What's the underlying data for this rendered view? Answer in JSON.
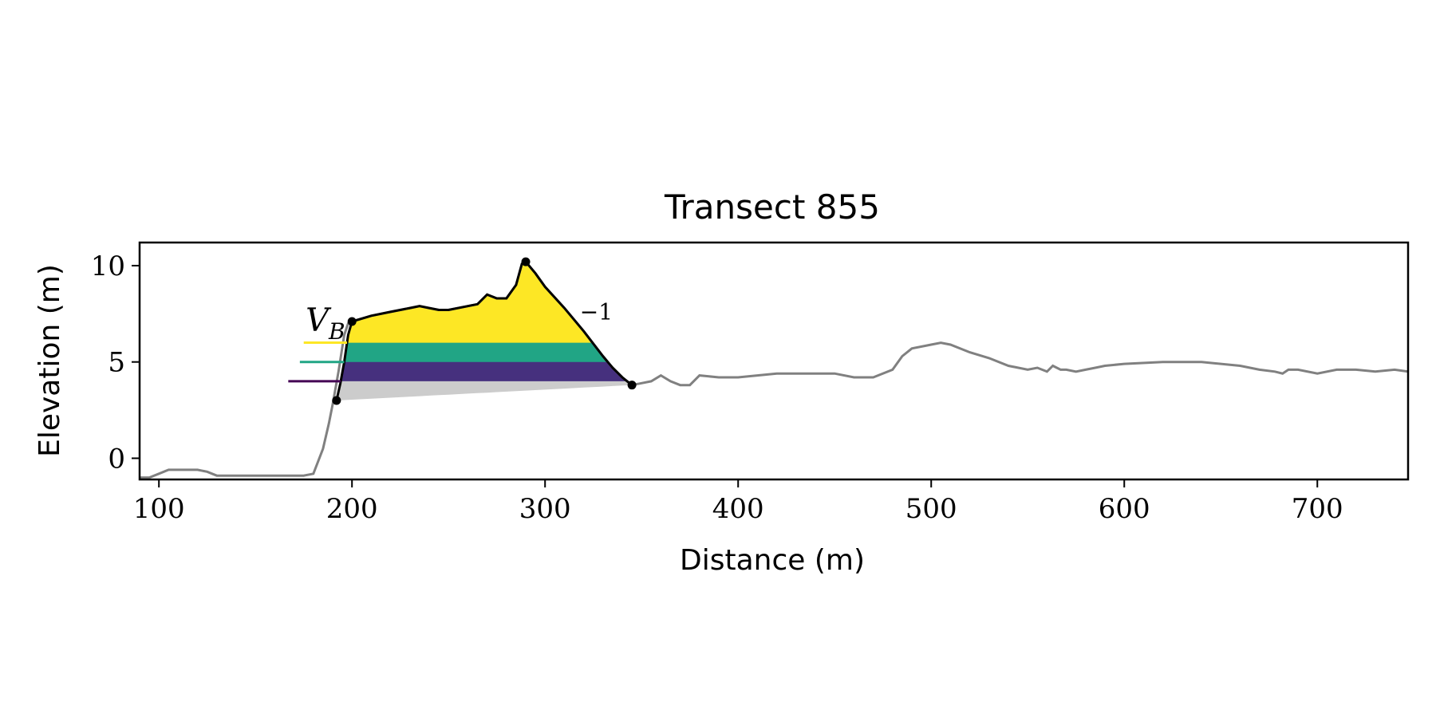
{
  "chart_data": {
    "type": "line",
    "title": "Transect 855",
    "xlabel": "Distance (m)",
    "ylabel": "Elevation (m)",
    "xlim": [
      90,
      747
    ],
    "ylim": [
      -1.1,
      11.2
    ],
    "xticks": [
      100,
      200,
      300,
      400,
      500,
      600,
      700
    ],
    "yticks": [
      0,
      5,
      10
    ],
    "grid": false,
    "colors": {
      "profile": "#808080",
      "dune": "#000000",
      "band_top": "#fde725",
      "band_mid": "#21a585",
      "band_low": "#46307e",
      "base": "#cccccc",
      "dark_line": "#440154"
    },
    "series": [
      {
        "x": [
          90,
          95,
          100,
          105,
          110,
          115,
          120,
          125,
          130,
          135,
          140,
          150,
          160,
          170,
          175,
          180,
          185,
          188,
          190,
          193,
          196,
          198,
          200,
          210,
          220,
          230,
          235,
          240,
          245,
          250,
          260,
          265,
          270,
          275,
          280,
          285,
          288,
          290,
          295,
          300,
          310,
          320,
          330,
          335,
          340,
          345,
          350,
          355,
          360,
          365,
          370,
          375,
          380,
          390,
          400,
          410,
          420,
          430,
          440,
          450,
          460,
          470,
          480,
          485,
          490,
          500,
          505,
          510,
          520,
          530,
          540,
          550,
          555,
          560,
          563,
          567,
          570,
          575,
          580,
          585,
          590,
          600,
          620,
          640,
          660,
          670,
          678,
          682,
          685,
          690,
          700,
          710,
          720,
          730,
          740,
          747
        ],
        "y": [
          -1.0,
          -1.0,
          -0.8,
          -0.6,
          -0.6,
          -0.6,
          -0.6,
          -0.7,
          -0.9,
          -0.9,
          -0.9,
          -0.9,
          -0.9,
          -0.9,
          -0.9,
          -0.8,
          0.5,
          1.8,
          2.8,
          4.5,
          6.4,
          7.0,
          7.1,
          7.4,
          7.6,
          7.8,
          7.9,
          7.8,
          7.7,
          7.7,
          7.9,
          8.0,
          8.5,
          8.3,
          8.3,
          9.0,
          10.1,
          10.2,
          9.6,
          8.9,
          7.8,
          6.6,
          5.3,
          4.7,
          4.2,
          3.8,
          3.9,
          4.0,
          4.3,
          4.0,
          3.8,
          3.8,
          4.3,
          4.2,
          4.2,
          4.3,
          4.4,
          4.4,
          4.4,
          4.4,
          4.2,
          4.2,
          4.6,
          5.3,
          5.7,
          5.9,
          6.0,
          5.9,
          5.5,
          5.2,
          4.8,
          4.6,
          4.7,
          4.5,
          4.8,
          4.6,
          4.6,
          4.5,
          4.6,
          4.7,
          4.8,
          4.9,
          5.0,
          5.0,
          4.8,
          4.6,
          4.5,
          4.4,
          4.6,
          4.6,
          4.4,
          4.6,
          4.6,
          4.5,
          4.6,
          4.5
        ]
      }
    ],
    "dune": {
      "x": [
        192,
        194,
        196,
        198,
        200,
        210,
        220,
        230,
        235,
        240,
        245,
        250,
        260,
        265,
        270,
        275,
        280,
        285,
        288,
        290,
        295,
        300,
        310,
        320,
        330,
        335,
        340,
        345
      ],
      "y": [
        3.0,
        3.9,
        5.0,
        6.4,
        7.1,
        7.4,
        7.6,
        7.8,
        7.9,
        7.8,
        7.7,
        7.7,
        7.9,
        8.0,
        8.5,
        8.3,
        8.3,
        9.0,
        10.1,
        10.2,
        9.6,
        8.9,
        7.8,
        6.6,
        5.3,
        4.7,
        4.2,
        3.8
      ]
    },
    "points": [
      {
        "x": 192,
        "y": 3.0
      },
      {
        "x": 200,
        "y": 7.1
      },
      {
        "x": 290,
        "y": 10.2
      },
      {
        "x": 345,
        "y": 3.8
      }
    ],
    "bands": [
      {
        "level": 6.0,
        "legend_start": 175,
        "color_key": "band_top"
      },
      {
        "level": 5.0,
        "legend_start": 173,
        "color_key": "band_mid"
      },
      {
        "level": 4.0,
        "legend_start": 167,
        "color_key": "band_low"
      }
    ],
    "annotations": {
      "vb_label": "V",
      "vb_sub": "B",
      "exp_label": "−1",
      "vb_pos": [
        176,
        6.6
      ],
      "exp_pos": [
        318,
        7.2
      ]
    }
  }
}
